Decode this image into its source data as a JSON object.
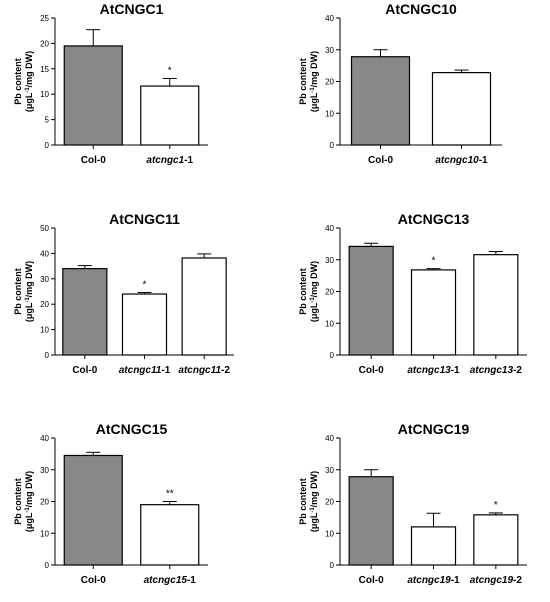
{
  "chart_data": [
    {
      "type": "bar",
      "title": "AtCNGC1",
      "ylabel": [
        "Pb content",
        "(μgL",
        "-1",
        "/mg DW)"
      ],
      "ylim": [
        0,
        25
      ],
      "yticks": [
        "0",
        "5",
        "10",
        "15",
        "20",
        "25"
      ],
      "categories": [
        {
          "italic": "",
          "plain": "Col-0"
        },
        {
          "italic": "atcngc1",
          "plain": "-1"
        }
      ],
      "values": [
        19.5,
        11.6
      ],
      "errors": [
        3.2,
        1.5
      ],
      "significance": [
        "",
        "*"
      ],
      "colors": [
        "#888888",
        "#ffffff"
      ]
    },
    {
      "type": "bar",
      "title": "AtCNGC10",
      "ylabel": [
        "Pb content",
        "(μgL",
        "-1",
        "/mg DW)"
      ],
      "ylim": [
        0,
        40
      ],
      "yticks": [
        "0",
        "10",
        "20",
        "30",
        "40"
      ],
      "categories": [
        {
          "italic": "",
          "plain": "Col-0"
        },
        {
          "italic": "atcngc10",
          "plain": "-1"
        }
      ],
      "values": [
        27.8,
        22.8
      ],
      "errors": [
        2.2,
        0.8
      ],
      "significance": [
        "",
        ""
      ],
      "colors": [
        "#888888",
        "#ffffff"
      ]
    },
    {
      "type": "bar",
      "title": "AtCNGC11",
      "ylabel": [
        "Pb content",
        "(μgL",
        "-1",
        "/mg DW)"
      ],
      "ylim": [
        0,
        50
      ],
      "yticks": [
        "0",
        "10",
        "20",
        "30",
        "40",
        "50"
      ],
      "categories": [
        {
          "italic": "",
          "plain": "Col-0"
        },
        {
          "italic": "atcngc11",
          "plain": "-1"
        },
        {
          "italic": "atcngc11",
          "plain": "-2"
        }
      ],
      "values": [
        34.0,
        24.0,
        38.2
      ],
      "errors": [
        1.2,
        0.6,
        1.6
      ],
      "significance": [
        "",
        "*",
        ""
      ],
      "colors": [
        "#888888",
        "#ffffff",
        "#ffffff"
      ]
    },
    {
      "type": "bar",
      "title": "AtCNGC13",
      "ylabel": [
        "Pb content",
        "(μgL",
        "-1",
        "/mg DW)"
      ],
      "ylim": [
        0,
        40
      ],
      "yticks": [
        "0",
        "10",
        "20",
        "30",
        "40"
      ],
      "categories": [
        {
          "italic": "",
          "plain": "Col-0"
        },
        {
          "italic": "atcngc13",
          "plain": "-1"
        },
        {
          "italic": "atcngc13",
          "plain": "-2"
        }
      ],
      "values": [
        34.2,
        26.8,
        31.6
      ],
      "errors": [
        1.0,
        0.4,
        1.0
      ],
      "significance": [
        "",
        "*",
        ""
      ],
      "colors": [
        "#888888",
        "#ffffff",
        "#ffffff"
      ]
    },
    {
      "type": "bar",
      "title": "AtCNGC15",
      "ylabel": [
        "Pb content",
        "(μgL",
        "-1",
        "/mg DW)"
      ],
      "ylim": [
        0,
        40
      ],
      "yticks": [
        "0",
        "10",
        "20",
        "30",
        "40"
      ],
      "categories": [
        {
          "italic": "",
          "plain": "Col-0"
        },
        {
          "italic": "atcngc15",
          "plain": "-1"
        }
      ],
      "values": [
        34.5,
        19.0
      ],
      "errors": [
        1.0,
        1.0
      ],
      "significance": [
        "",
        "**"
      ],
      "colors": [
        "#888888",
        "#ffffff"
      ]
    },
    {
      "type": "bar",
      "title": "AtCNGC19",
      "ylabel": [
        "Pb content",
        "(μgL",
        "-1",
        "/mg DW)"
      ],
      "ylim": [
        0,
        40
      ],
      "yticks": [
        "0",
        "10",
        "20",
        "30",
        "40"
      ],
      "categories": [
        {
          "italic": "",
          "plain": "Col-0"
        },
        {
          "italic": "atcngc19",
          "plain": "-1"
        },
        {
          "italic": "atcngc19",
          "plain": "-2"
        }
      ],
      "values": [
        27.8,
        12.0,
        15.8
      ],
      "errors": [
        2.2,
        4.3,
        0.6
      ],
      "significance": [
        "",
        "",
        "*"
      ],
      "colors": [
        "#888888",
        "#ffffff",
        "#ffffff"
      ]
    }
  ]
}
